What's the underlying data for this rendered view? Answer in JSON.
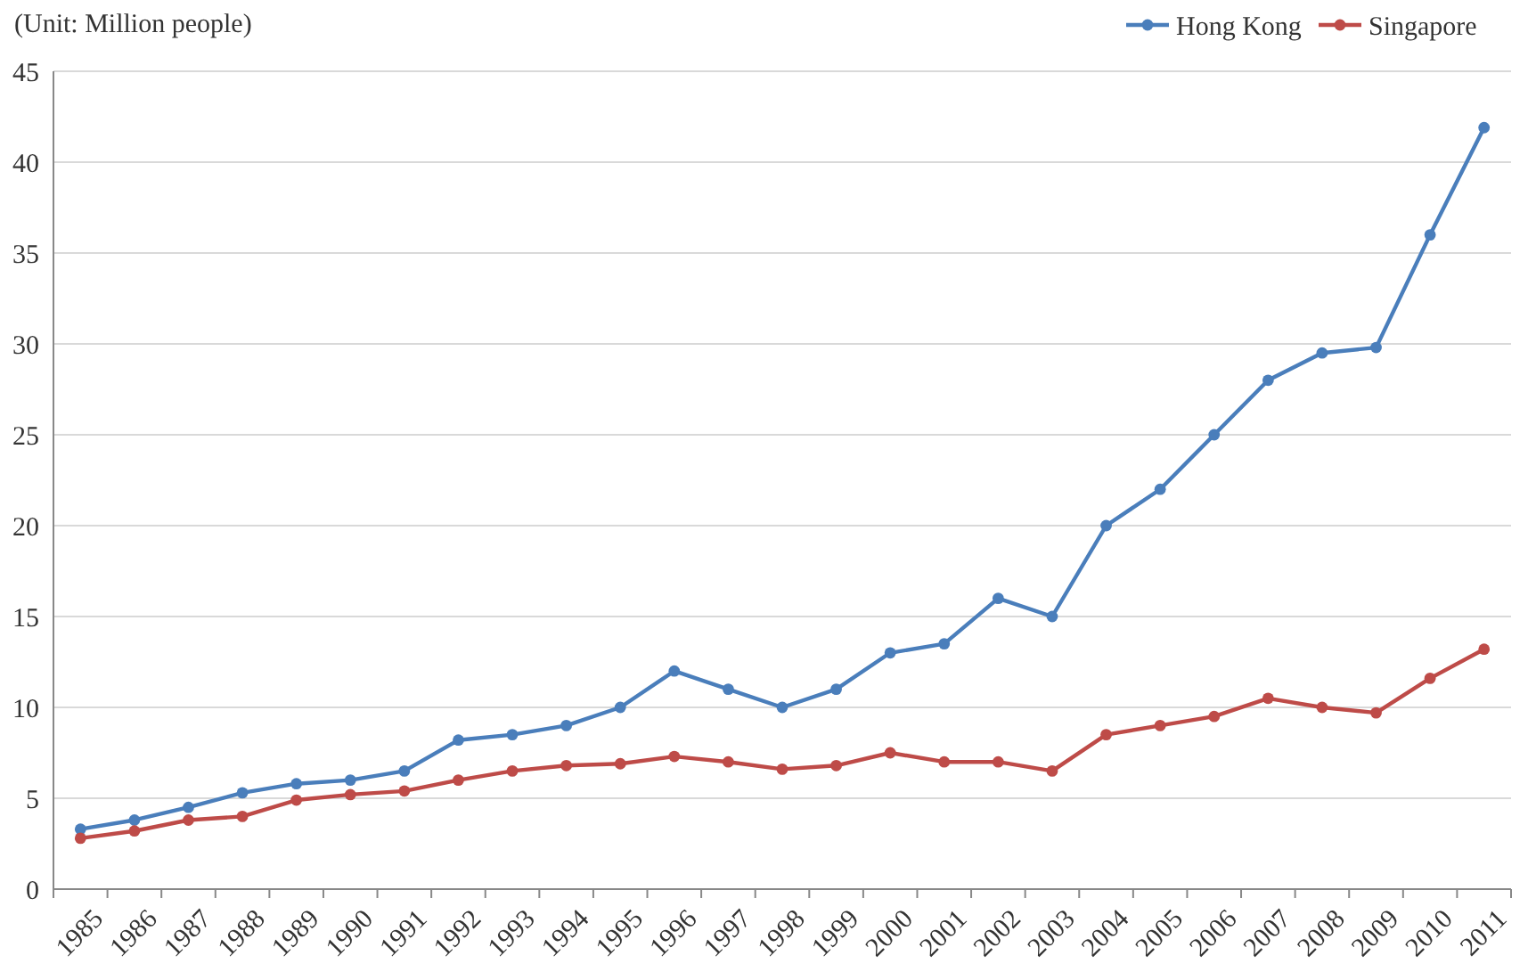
{
  "chart_data": {
    "type": "line",
    "ylabel": "(Unit: Million people)",
    "categories": [
      "1985",
      "1986",
      "1987",
      "1988",
      "1989",
      "1990",
      "1991",
      "1992",
      "1993",
      "1994",
      "1995",
      "1996",
      "1997",
      "1998",
      "1999",
      "2000",
      "2001",
      "2002",
      "2003",
      "2004",
      "2005",
      "2006",
      "2007",
      "2008",
      "2009",
      "2010",
      "2011"
    ],
    "series": [
      {
        "name": "Hong Kong",
        "color": "#4a7ebb",
        "values": [
          3.3,
          3.8,
          4.5,
          5.3,
          5.8,
          6.0,
          6.5,
          8.2,
          8.5,
          9.0,
          10.0,
          12.0,
          11.0,
          10.0,
          11.0,
          13.0,
          13.5,
          16.0,
          15.0,
          20.0,
          22.0,
          25.0,
          28.0,
          29.5,
          29.8,
          36.0,
          41.9
        ]
      },
      {
        "name": "Singapore",
        "color": "#be4b48",
        "values": [
          2.8,
          3.2,
          3.8,
          4.0,
          4.9,
          5.2,
          5.4,
          6.0,
          6.5,
          6.8,
          6.9,
          7.3,
          7.0,
          6.6,
          6.8,
          7.5,
          7.0,
          7.0,
          6.5,
          8.5,
          9.0,
          9.5,
          10.5,
          10.0,
          9.7,
          11.6,
          13.2
        ]
      }
    ],
    "ylim": [
      0,
      45
    ],
    "yticks": [
      0,
      5,
      10,
      15,
      20,
      25,
      30,
      35,
      40,
      45
    ],
    "grid": "y",
    "legend": "top right",
    "marker": "circle",
    "line_style": "solid"
  }
}
